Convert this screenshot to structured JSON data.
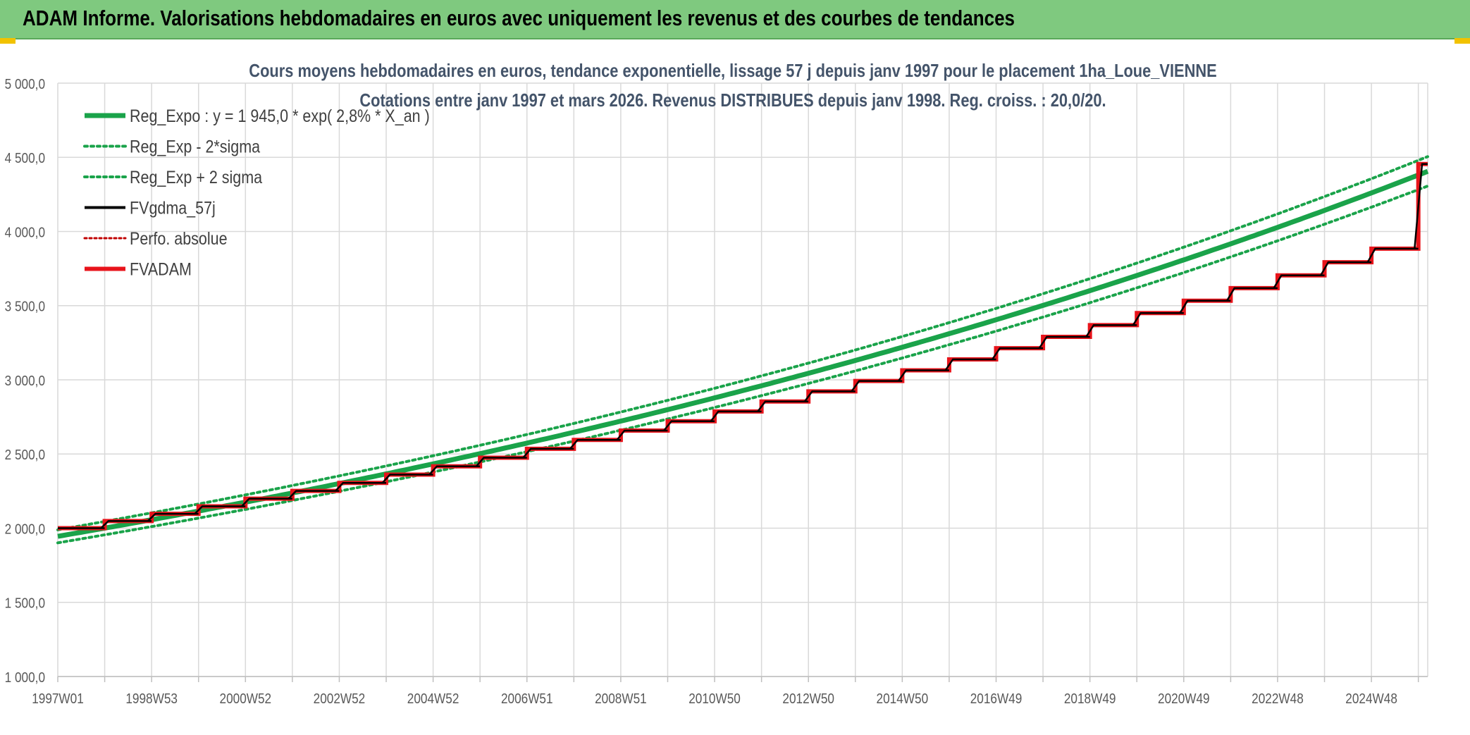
{
  "banner": {
    "title": "ADAM Informe. Valorisations hebdomadaires en euros avec uniquement les revenus et des courbes de tendances"
  },
  "colors": {
    "banner_bg": "#7fc97f",
    "reg_expo": "#1aa34a",
    "fvgdma": "#000000",
    "fvadam": "#e8141b",
    "perfo": "#c00000",
    "gridline": "#d9d9d9"
  },
  "chart_data": {
    "type": "line",
    "title_line1": "Cours moyens hebdomadaires en euros, tendance exponentielle, lissage 57 j depuis janv 1997 pour le placement 1ha_Loue_VIENNE",
    "title_line2": "Cotations entre janv 1997 et mars 2026. Revenus DISTRIBUES depuis janv 1998. Reg. croiss. : 20,0/20.",
    "x_start": "1997W01",
    "x_end": "2026W12",
    "x_tick_labels": [
      "1997W01",
      "1998W53",
      "2000W52",
      "2002W52",
      "2004W52",
      "2006W51",
      "2008W51",
      "2010W50",
      "2012W50",
      "2014W50",
      "2016W49",
      "2018W49",
      "2020W49",
      "2022W48",
      "2024W48"
    ],
    "y_ticks": [
      "1 000,0",
      "1 500,0",
      "2 000,0",
      "2 500,0",
      "3 000,0",
      "3 500,0",
      "4 000,0",
      "4 500,0",
      "5 000,0"
    ],
    "ylim": [
      1000,
      5000
    ],
    "xlim_years": [
      0,
      29.2
    ],
    "grid": true,
    "legend_position": "top-left",
    "legend": [
      {
        "name": "Reg_Expo : y = 1 945,0 * exp( 2,8% *  X_an )",
        "style": "solid-green-thick"
      },
      {
        "name": "Reg_Exp - 2*sigma",
        "style": "dotted-green"
      },
      {
        "name": "Reg_Exp + 2 sigma",
        "style": "dotted-green"
      },
      {
        "name": "FVgdma_57j",
        "style": "solid-black"
      },
      {
        "name": "Perfo. absolue",
        "style": "dotted-red"
      },
      {
        "name": "FVADAM",
        "style": "solid-red-thick"
      }
    ],
    "regression": {
      "a": 1945.0,
      "rate": 0.028,
      "sigma2_factor": 0.0225
    },
    "fvadam_yearly_levels": [
      {
        "year": 0,
        "value": 2000
      },
      {
        "year": 1,
        "value": 2048
      },
      {
        "year": 2,
        "value": 2097
      },
      {
        "year": 3,
        "value": 2147
      },
      {
        "year": 4,
        "value": 2199
      },
      {
        "year": 5,
        "value": 2251
      },
      {
        "year": 6,
        "value": 2305
      },
      {
        "year": 7,
        "value": 2361
      },
      {
        "year": 8,
        "value": 2417
      },
      {
        "year": 9,
        "value": 2475
      },
      {
        "year": 10,
        "value": 2535
      },
      {
        "year": 11,
        "value": 2595
      },
      {
        "year": 12,
        "value": 2658
      },
      {
        "year": 13,
        "value": 2721
      },
      {
        "year": 14,
        "value": 2787
      },
      {
        "year": 15,
        "value": 2854
      },
      {
        "year": 16,
        "value": 2922
      },
      {
        "year": 17,
        "value": 2992
      },
      {
        "year": 18,
        "value": 3064
      },
      {
        "year": 19,
        "value": 3138
      },
      {
        "year": 20,
        "value": 3213
      },
      {
        "year": 21,
        "value": 3290
      },
      {
        "year": 22,
        "value": 3369
      },
      {
        "year": 23,
        "value": 3450
      },
      {
        "year": 24,
        "value": 3533
      },
      {
        "year": 25,
        "value": 3618
      },
      {
        "year": 26,
        "value": 3704
      },
      {
        "year": 27,
        "value": 3793
      },
      {
        "year": 28,
        "value": 3884
      },
      {
        "year": 29,
        "value": 4455
      }
    ]
  }
}
